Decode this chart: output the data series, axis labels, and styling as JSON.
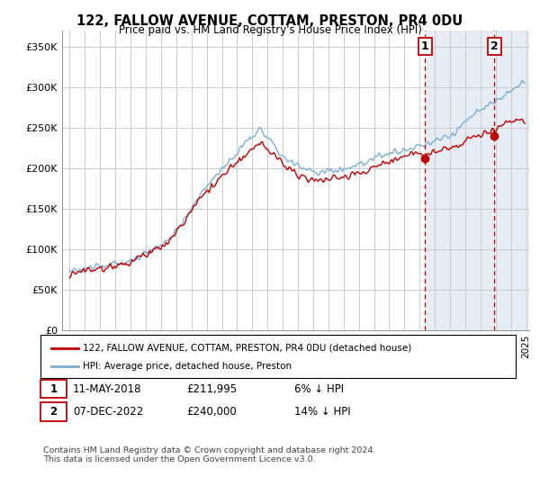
{
  "title": "122, FALLOW AVENUE, COTTAM, PRESTON, PR4 0DU",
  "subtitle": "Price paid vs. HM Land Registry's House Price Index (HPI)",
  "ylim": [
    0,
    370000
  ],
  "yticks": [
    0,
    50000,
    100000,
    150000,
    200000,
    250000,
    300000,
    350000
  ],
  "ytick_labels": [
    "£0",
    "£50K",
    "£100K",
    "£150K",
    "£200K",
    "£250K",
    "£300K",
    "£350K"
  ],
  "hpi_color": "#7bafd4",
  "price_color": "#c00000",
  "marker1_year": 2018.36,
  "marker1_price": 211995,
  "marker2_year": 2022.92,
  "marker2_price": 240000,
  "hpi_at_marker1": 225527,
  "hpi_at_marker2": 279070,
  "legend_line1": "122, FALLOW AVENUE, COTTAM, PRESTON, PR4 0DU (detached house)",
  "legend_line2": "HPI: Average price, detached house, Preston",
  "note1_label": "1",
  "note1_date": "11-MAY-2018",
  "note1_price": "£211,995",
  "note1_pct": "6% ↓ HPI",
  "note2_label": "2",
  "note2_date": "07-DEC-2022",
  "note2_price": "£240,000",
  "note2_pct": "14% ↓ HPI",
  "footer": "Contains HM Land Registry data © Crown copyright and database right 2024.\nThis data is licensed under the Open Government Licence v3.0.",
  "background_color": "#ffffff",
  "plot_bg_color": "#ffffff",
  "grid_color": "#cccccc",
  "shade_color": "#dce6f1"
}
